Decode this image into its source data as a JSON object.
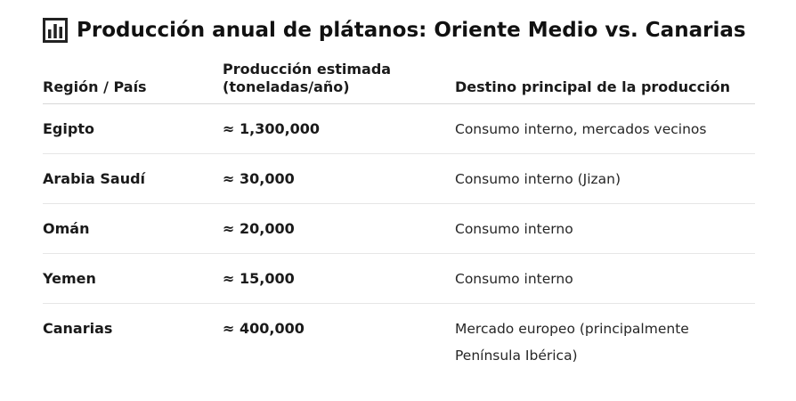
{
  "title": "Producción anual de plátanos: Oriente Medio vs. Canarias",
  "title_icon": "bar-chart-icon",
  "table": {
    "headers": [
      "Región / País",
      "Producción estimada\n(toneladas/año)",
      "Destino principal de la producción"
    ],
    "rows": [
      {
        "region": "Egipto",
        "production": "≈ 1,300,000",
        "destination": "Consumo interno, mercados vecinos"
      },
      {
        "region": "Arabia Saudí",
        "production": "≈ 30,000",
        "destination": "Consumo interno (Jizan)"
      },
      {
        "region": "Omán",
        "production": "≈ 20,000",
        "destination": "Consumo interno"
      },
      {
        "region": "Yemen",
        "production": "≈ 15,000",
        "destination": "Consumo interno"
      },
      {
        "region": "Canarias",
        "production": "≈ 400,000",
        "destination": "Mercado europeo (principalmente Península Ibérica)"
      }
    ]
  }
}
